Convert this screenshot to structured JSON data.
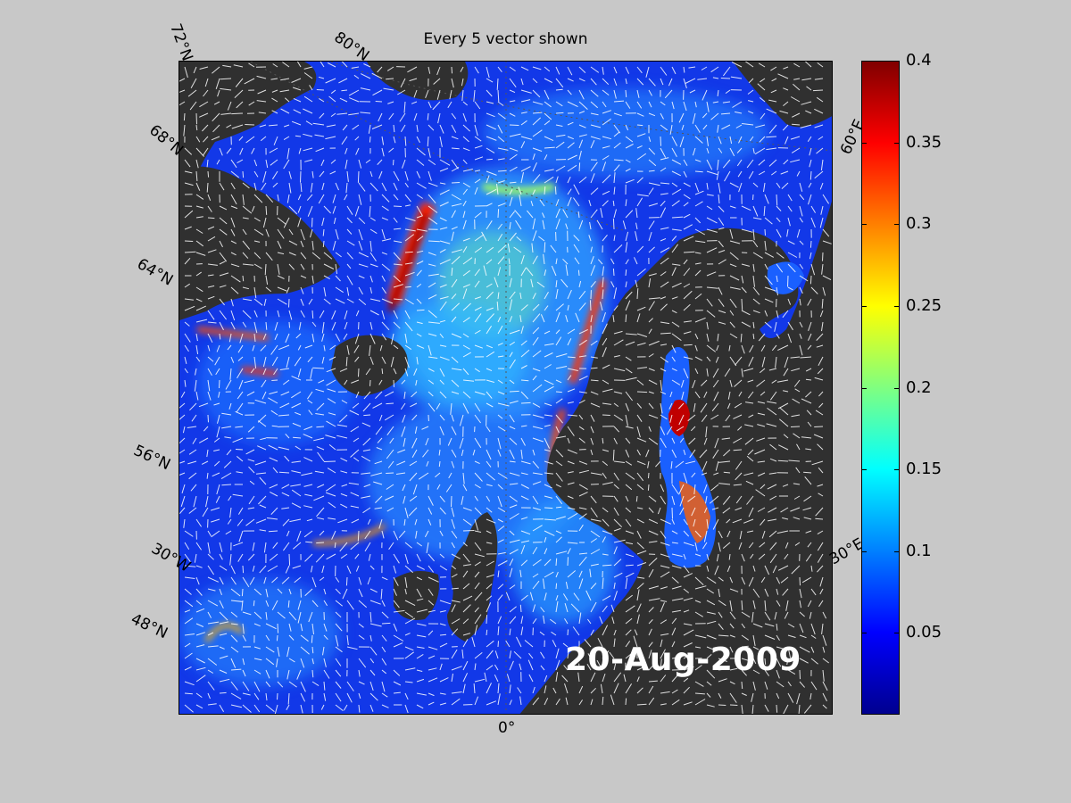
{
  "title": "Every 5 vector shown",
  "date_label": "20-Aug-2009",
  "graticule_labels": {
    "lat72": "72°N",
    "lat80": "80°N",
    "lat68": "68°N",
    "lat64": "64°N",
    "lat56": "56°N",
    "lat48": "48°N",
    "lon30w": "30°W",
    "lon0": "0°",
    "lon30e": "30°E",
    "lon60e": "60°E"
  },
  "colorbar": {
    "min": 0,
    "max": 0.4,
    "ticks": [
      "0.4",
      "0.35",
      "0.3",
      "0.25",
      "0.2",
      "0.15",
      "0.1",
      "0.05"
    ],
    "colormap": "jet"
  },
  "colors": {
    "background": "#c8c8c8",
    "land": "#303030",
    "ocean_low": "#0f2fe0",
    "vectors": "#ffffff"
  }
}
